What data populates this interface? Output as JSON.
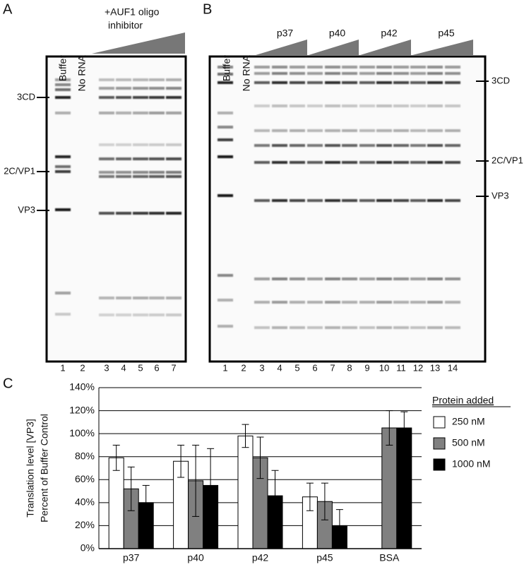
{
  "panel_a": {
    "label": "A",
    "lanes": [
      "Buffer",
      "No RNA"
    ],
    "treatment": [
      "+AUF1 oligo",
      "inhibitor"
    ],
    "markers": [
      "3CD",
      "2C/VP1",
      "VP3"
    ],
    "lane_numbers": [
      "1",
      "2",
      "3",
      "4",
      "5",
      "6",
      "7"
    ]
  },
  "panel_b": {
    "label": "B",
    "lanes": [
      "Buffer",
      "No RNA"
    ],
    "groups": [
      "p37",
      "p40",
      "p42",
      "p45"
    ],
    "markers": [
      "3CD",
      "2C/VP1",
      "VP3"
    ],
    "lane_numbers": [
      "1",
      "2",
      "3",
      "4",
      "5",
      "6",
      "7",
      "8",
      "9",
      "10",
      "11",
      "12",
      "13",
      "14"
    ]
  },
  "chart_data": {
    "type": "bar",
    "panel_label": "C",
    "y_label": [
      "Translation level [VP3]",
      "Percent of Buffer Control"
    ],
    "categories": [
      "p37",
      "p40",
      "p42",
      "p45",
      "BSA"
    ],
    "legend_title": "Protein added",
    "series": [
      {
        "name": "250 nM",
        "color": "#ffffff",
        "values": [
          79,
          76,
          98,
          45,
          null
        ],
        "errors": [
          11,
          14,
          10,
          12,
          null
        ]
      },
      {
        "name": "500 nM",
        "color": "#808080",
        "values": [
          52,
          59,
          79,
          41,
          105
        ],
        "errors": [
          19,
          31,
          18,
          16,
          15
        ]
      },
      {
        "name": "1000 nM",
        "color": "#000000",
        "values": [
          40,
          55,
          46,
          20,
          105
        ],
        "errors": [
          15,
          32,
          22,
          14,
          14
        ]
      }
    ],
    "ylim": [
      0,
      140
    ],
    "yticks": [
      {
        "value": 0,
        "label": "0%"
      },
      {
        "value": 20,
        "label": "20%"
      },
      {
        "value": 40,
        "label": "40%"
      },
      {
        "value": 60,
        "label": "60%"
      },
      {
        "value": 80,
        "label": "80%"
      },
      {
        "value": 100,
        "label": "100%"
      },
      {
        "value": 120,
        "label": "120%"
      },
      {
        "value": 140,
        "label": "140%"
      }
    ],
    "grid": true
  }
}
